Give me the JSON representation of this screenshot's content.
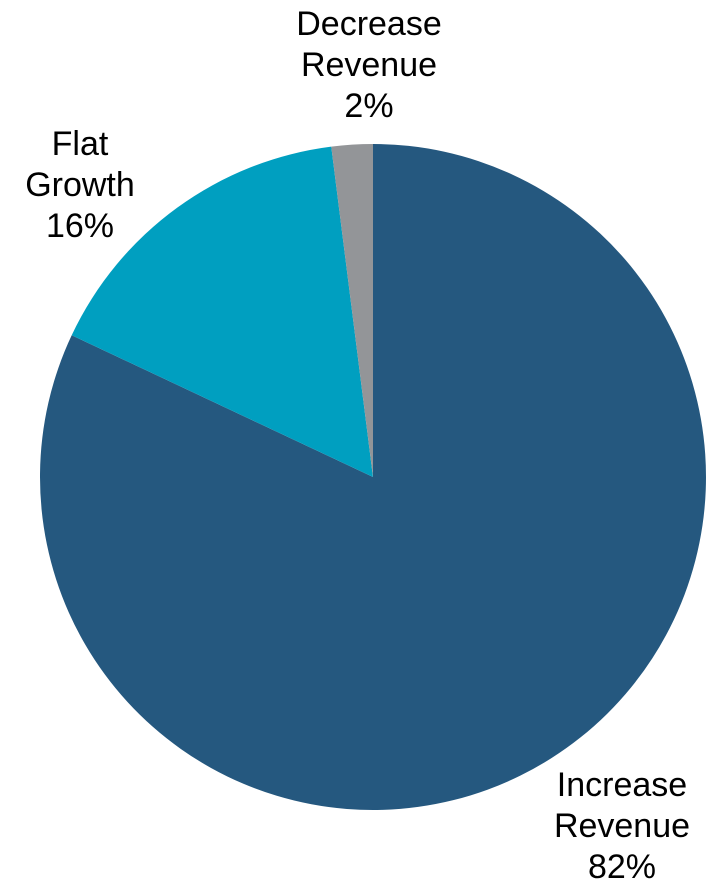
{
  "chart_data": {
    "type": "pie",
    "title": "",
    "start_angle_deg": 0,
    "direction": "clockwise",
    "slices": [
      {
        "label": [
          "Increase",
          "Revenue"
        ],
        "value": 82,
        "value_label": "82%",
        "color": "#25587F"
      },
      {
        "label": [
          "Flat",
          "Growth"
        ],
        "value": 16,
        "value_label": "16%",
        "color": "#009FC0"
      },
      {
        "label": [
          "Decrease",
          "Revenue"
        ],
        "value": 2,
        "value_label": "2%",
        "color": "#939598"
      }
    ]
  }
}
